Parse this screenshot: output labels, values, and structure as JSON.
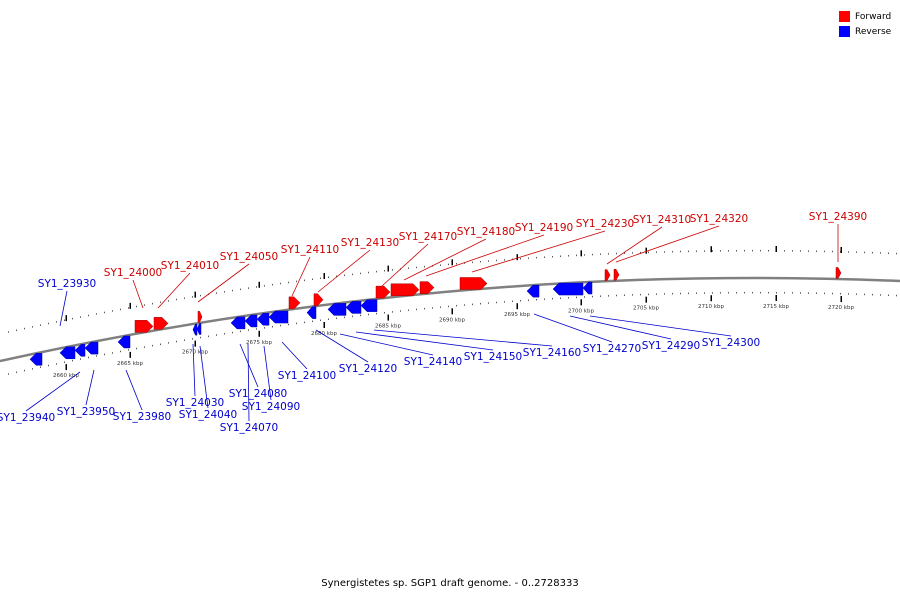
{
  "legend": {
    "forward_label": "Forward",
    "reverse_label": "Reverse",
    "forward_color": "#ff0000",
    "reverse_color": "#0000ff"
  },
  "caption": "Synergistetes sp. SGP1 draft genome. - 0..2728333",
  "colors": {
    "backbone": "#808080",
    "forward_label": "#cc0000",
    "reverse_label": "#0000cc"
  },
  "ticks": [
    "2660 kbp",
    "2665 kbp",
    "2670 kbp",
    "2675 kbp",
    "2680 kbp",
    "2685 kbp",
    "2690 kbp",
    "2695 kbp",
    "2700 kbp",
    "2705 kbp",
    "2710 kbp",
    "2715 kbp",
    "2720 kbp"
  ],
  "forward_genes": [
    "SY1_24000",
    "SY1_24010",
    "SY1_24050",
    "SY1_24110",
    "SY1_24130",
    "SY1_24170",
    "SY1_24180",
    "SY1_24190",
    "SY1_24230",
    "SY1_24310",
    "SY1_24320",
    "SY1_24390"
  ],
  "reverse_genes": [
    "SY1_23930",
    "SY1_23940",
    "SY1_23950",
    "SY1_23980",
    "SY1_24030",
    "SY1_24040",
    "SY1_24070",
    "SY1_24080",
    "SY1_24090",
    "SY1_24100",
    "SY1_24120",
    "SY1_24140",
    "SY1_24150",
    "SY1_24160",
    "SY1_24270",
    "SY1_24290",
    "SY1_24300"
  ]
}
